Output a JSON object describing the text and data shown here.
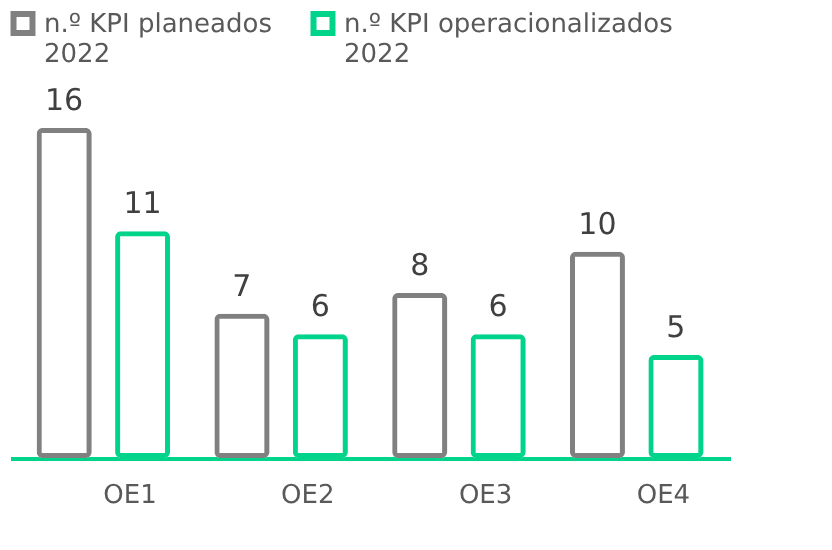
{
  "chart_data": {
    "type": "bar",
    "categories": [
      "OE1",
      "OE2",
      "OE3",
      "OE4"
    ],
    "series": [
      {
        "name": "n.º KPI planeados 2022",
        "color": "#808080",
        "values": [
          16,
          7,
          8,
          10
        ]
      },
      {
        "name": "n.º KPI operacionalizados 2022",
        "color": "#00d38a",
        "values": [
          11,
          6,
          6,
          5
        ]
      }
    ],
    "data_labels": true,
    "legend": "top left",
    "grid": false
  }
}
